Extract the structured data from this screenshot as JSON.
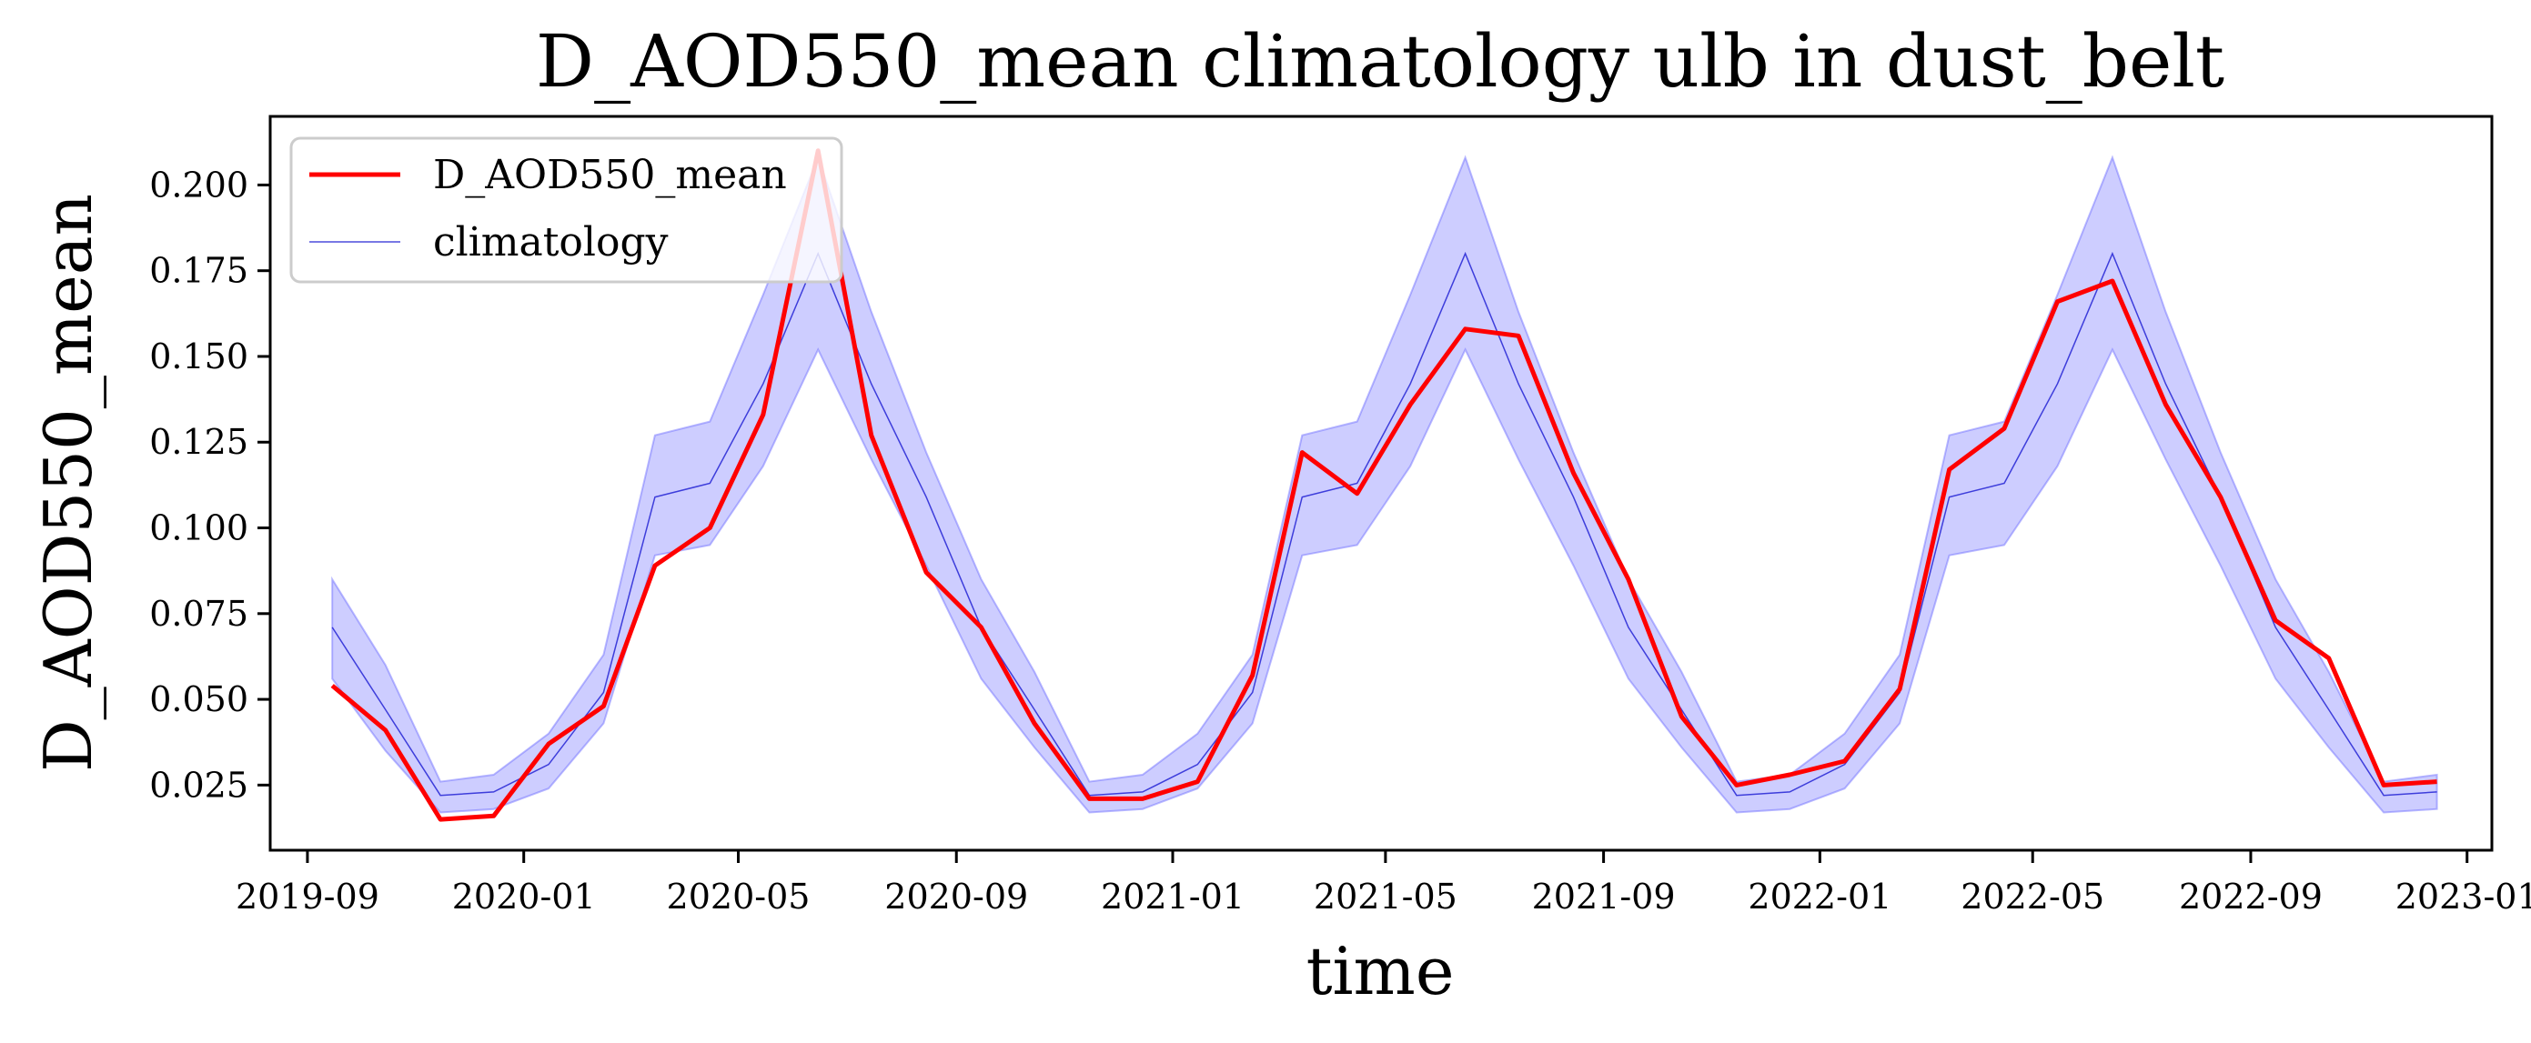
{
  "chart_data": {
    "type": "line",
    "title": "D_AOD550_mean climatology ulb in dust_belt",
    "xlabel": "time",
    "ylabel": "D_AOD550_mean",
    "xlim": [
      "2019-08-11",
      "2023-01-15"
    ],
    "ylim": [
      0.006,
      0.22
    ],
    "x_ticks": [
      "2019-09",
      "2020-01",
      "2020-05",
      "2020-09",
      "2021-01",
      "2021-05",
      "2021-09",
      "2022-01",
      "2022-05",
      "2022-09",
      "2023-01"
    ],
    "y_ticks": [
      "0.025",
      "0.050",
      "0.075",
      "0.100",
      "0.125",
      "0.150",
      "0.175",
      "0.200"
    ],
    "legend_position": "top-left",
    "grid": false,
    "x": [
      "2019-09-15",
      "2019-10-15",
      "2019-11-15",
      "2019-12-15",
      "2020-01-15",
      "2020-02-15",
      "2020-03-15",
      "2020-04-15",
      "2020-05-15",
      "2020-06-15",
      "2020-07-15",
      "2020-08-15",
      "2020-09-15",
      "2020-10-15",
      "2020-11-15",
      "2020-12-15",
      "2021-01-15",
      "2021-02-15",
      "2021-03-15",
      "2021-04-15",
      "2021-05-15",
      "2021-06-15",
      "2021-07-15",
      "2021-08-15",
      "2021-09-15",
      "2021-10-15",
      "2021-11-15",
      "2021-12-15",
      "2022-01-15",
      "2022-02-15",
      "2022-03-15",
      "2022-04-15",
      "2022-05-15",
      "2022-06-15",
      "2022-07-15",
      "2022-08-15",
      "2022-09-15",
      "2022-10-15",
      "2022-11-15",
      "2022-12-15"
    ],
    "series": [
      {
        "name": "D_AOD550_mean",
        "color": "#ff0000",
        "values": [
          0.054,
          0.041,
          0.015,
          0.016,
          0.037,
          0.048,
          0.089,
          0.1,
          0.133,
          0.21,
          0.127,
          0.087,
          0.071,
          0.043,
          0.021,
          0.021,
          0.026,
          0.057,
          0.122,
          0.11,
          0.136,
          0.158,
          0.156,
          0.116,
          0.085,
          0.045,
          0.025,
          0.028,
          0.032,
          0.053,
          0.117,
          0.129,
          0.166,
          0.172,
          0.136,
          0.109,
          0.073,
          0.062,
          0.025,
          0.026
        ]
      },
      {
        "name": "climatology",
        "color": "#0000cc",
        "values": [
          0.071,
          0.047,
          0.022,
          0.023,
          0.031,
          0.052,
          0.109,
          0.113,
          0.142,
          0.18,
          0.142,
          0.109,
          0.071,
          0.047,
          0.022,
          0.023,
          0.031,
          0.052,
          0.109,
          0.113,
          0.142,
          0.18,
          0.142,
          0.109,
          0.071,
          0.047,
          0.022,
          0.023,
          0.031,
          0.052,
          0.109,
          0.113,
          0.142,
          0.18,
          0.142,
          0.109,
          0.071,
          0.047,
          0.022,
          0.023
        ],
        "band_upper": [
          0.085,
          0.06,
          0.026,
          0.028,
          0.04,
          0.063,
          0.127,
          0.131,
          0.168,
          0.208,
          0.163,
          0.122,
          0.085,
          0.058,
          0.026,
          0.028,
          0.04,
          0.063,
          0.127,
          0.131,
          0.168,
          0.208,
          0.163,
          0.122,
          0.085,
          0.058,
          0.026,
          0.028,
          0.04,
          0.063,
          0.127,
          0.131,
          0.168,
          0.208,
          0.163,
          0.122,
          0.085,
          0.058,
          0.026,
          0.028
        ],
        "band_lower": [
          0.056,
          0.035,
          0.017,
          0.018,
          0.024,
          0.043,
          0.092,
          0.095,
          0.118,
          0.152,
          0.12,
          0.089,
          0.056,
          0.036,
          0.017,
          0.018,
          0.024,
          0.043,
          0.092,
          0.095,
          0.118,
          0.152,
          0.12,
          0.089,
          0.056,
          0.036,
          0.017,
          0.018,
          0.024,
          0.043,
          0.092,
          0.095,
          0.118,
          0.152,
          0.12,
          0.089,
          0.056,
          0.036,
          0.017,
          0.018
        ],
        "band_color": "#6666ff"
      }
    ]
  }
}
